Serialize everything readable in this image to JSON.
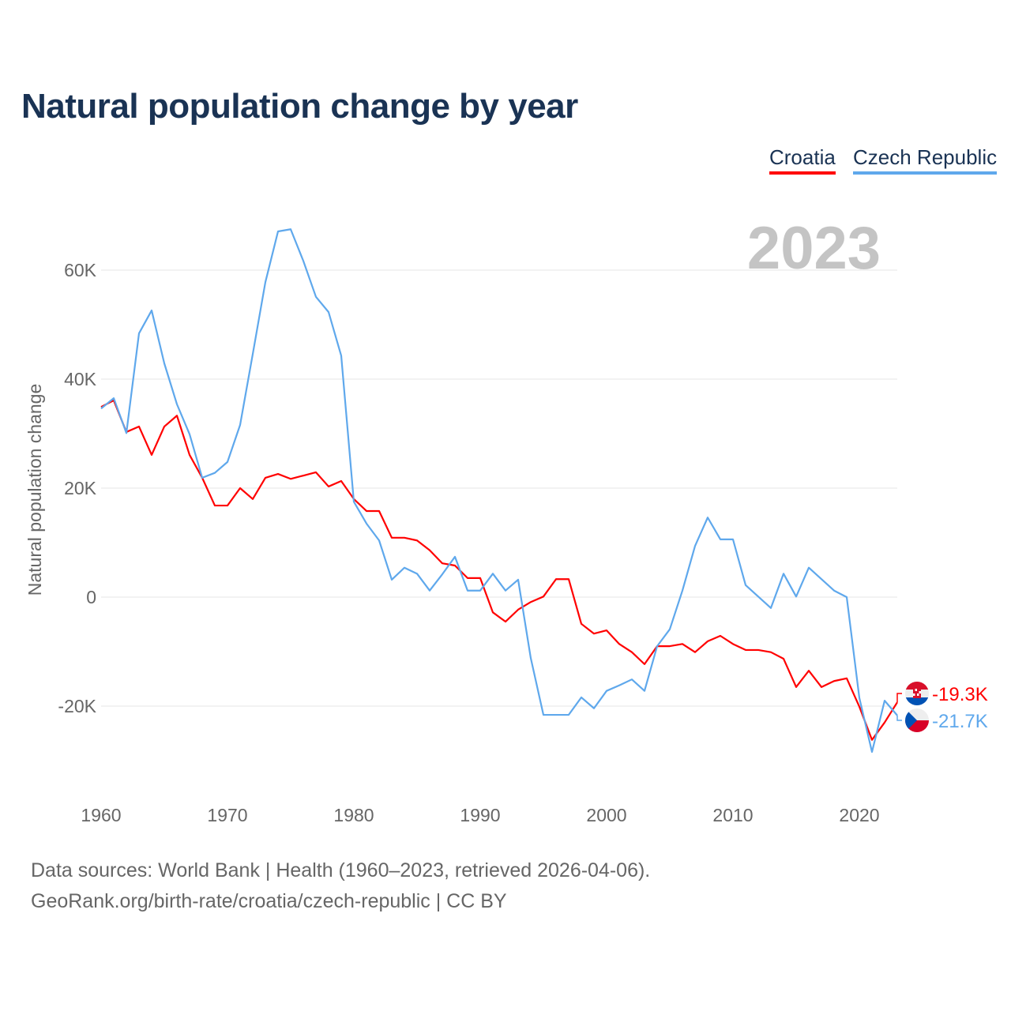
{
  "title": "Natural population change by year",
  "legend": [
    {
      "label": "Croatia",
      "color": "#ff0000"
    },
    {
      "label": "Czech Republic",
      "color": "#5fa8ec"
    }
  ],
  "year_display": "2023",
  "footer": {
    "line1": "Data sources: World Bank | Health (1960–2023, retrieved 2026-04-06).",
    "line2": "GeoRank.org/birth-rate/croatia/czech-republic | CC BY"
  },
  "chart_data": {
    "type": "line",
    "title": "Natural population change by year",
    "xlabel": "",
    "ylabel": "Natural population change",
    "xlim": [
      1960,
      2023
    ],
    "ylim": [
      -30000,
      70000
    ],
    "x_ticks": [
      1960,
      1970,
      1980,
      1990,
      2000,
      2010,
      2020
    ],
    "x_tick_labels": [
      "1960",
      "1970",
      "1980",
      "1990",
      "2000",
      "2010",
      "2020"
    ],
    "y_ticks": [
      -20000,
      0,
      20000,
      40000,
      60000
    ],
    "y_tick_labels": [
      "-20K",
      "0",
      "20K",
      "40K",
      "60K"
    ],
    "grid": true,
    "legend_position": "top-right",
    "x_start": 1960,
    "series": [
      {
        "name": "Croatia",
        "color": "#ff0000",
        "end_label": "-19.3K",
        "flag": "croatia-flag",
        "values": [
          34900,
          36100,
          30300,
          31300,
          26100,
          31300,
          33300,
          26100,
          21900,
          16800,
          16800,
          20000,
          18000,
          21900,
          22600,
          21700,
          22300,
          22900,
          20300,
          21300,
          18000,
          15800,
          15800,
          10900,
          10900,
          10400,
          8600,
          6200,
          5800,
          3500,
          3500,
          -2800,
          -4500,
          -2300,
          -900,
          100,
          3300,
          3300,
          -4900,
          -6700,
          -6100,
          -8600,
          -10100,
          -12300,
          -9000,
          -9000,
          -8600,
          -10100,
          -8100,
          -7100,
          -8600,
          -9700,
          -9700,
          -10100,
          -11300,
          -16500,
          -13500,
          -16500,
          -15400,
          -14900,
          -20100,
          -26200,
          -23000,
          -19300
        ]
      },
      {
        "name": "Czech Republic",
        "color": "#5fa8ec",
        "end_label": "-21.7K",
        "flag": "czech-flag",
        "values": [
          34600,
          36500,
          30100,
          48400,
          52600,
          42900,
          35400,
          29900,
          21900,
          22800,
          24800,
          31600,
          44600,
          57800,
          67100,
          67500,
          61700,
          55100,
          52300,
          44300,
          17500,
          13500,
          10400,
          3200,
          5400,
          4300,
          1200,
          4200,
          7400,
          1200,
          1200,
          4300,
          1200,
          3200,
          -11200,
          -21600,
          -21600,
          -21600,
          -18400,
          -20400,
          -17200,
          -16200,
          -15100,
          -17200,
          -9000,
          -5900,
          1200,
          9400,
          14600,
          10600,
          10600,
          2200,
          100,
          -2000,
          4300,
          100,
          5400,
          3300,
          1200,
          0,
          -18500,
          -28400,
          -19000,
          -21700
        ]
      }
    ]
  }
}
